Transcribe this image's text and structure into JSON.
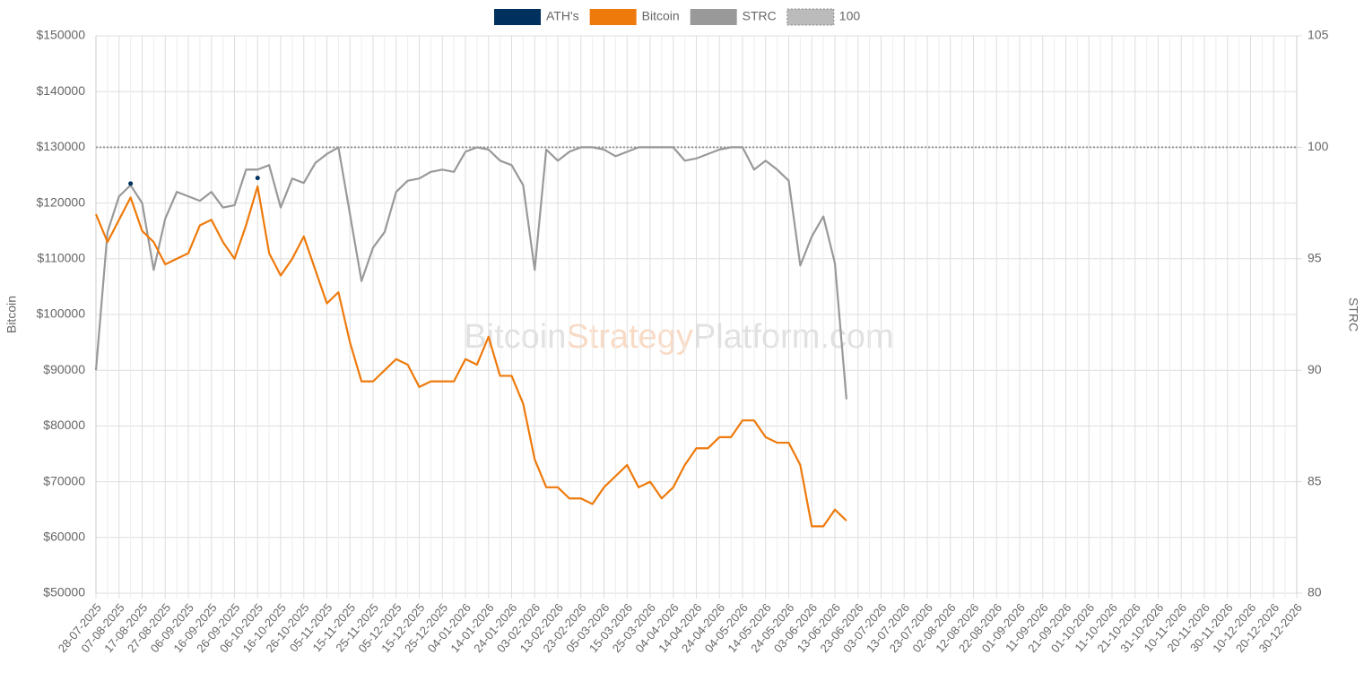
{
  "chart_data": {
    "type": "line",
    "y_label": "Bitcoin",
    "y2_label": "STRC",
    "watermark": [
      "Bitcoin",
      "Strategy",
      "Platform.com"
    ],
    "categories": [
      "28-07-2025",
      null,
      "07-08-2025",
      null,
      "17-08-2025",
      null,
      "27-08-2025",
      null,
      "06-09-2025",
      null,
      "16-09-2025",
      null,
      "26-09-2025",
      null,
      "06-10-2025",
      null,
      "16-10-2025",
      null,
      "26-10-2025",
      null,
      "05-11-2025",
      null,
      "15-11-2025",
      null,
      "25-11-2025",
      null,
      "05-12-2025",
      null,
      "15-12-2025",
      null,
      "25-12-2025",
      null,
      "04-01-2026",
      null,
      "14-01-2026",
      null,
      "24-01-2026",
      null,
      "03-02-2026",
      null,
      "13-02-2026",
      null,
      "23-02-2026",
      null,
      "05-03-2026",
      null,
      "15-03-2026",
      null,
      "25-03-2026",
      null,
      "04-04-2026",
      null,
      "14-04-2026",
      null,
      "24-04-2026",
      null,
      "04-05-2026",
      null,
      "14-05-2026",
      null,
      "24-05-2026",
      null,
      "03-06-2026",
      null,
      "13-06-2026",
      null,
      "23-06-2026",
      null,
      "03-07-2026",
      null,
      "13-07-2026",
      null,
      "23-07-2026",
      null,
      "02-08-2026",
      null,
      "12-08-2026",
      null,
      "22-08-2026",
      null,
      "01-09-2026",
      null,
      "11-09-2026",
      null,
      "21-09-2026",
      null,
      "01-10-2026",
      null,
      "11-10-2026",
      null,
      "21-10-2026",
      null,
      "31-10-2026",
      null,
      "10-11-2026",
      null,
      "20-11-2026",
      null,
      "30-11-2026",
      null,
      "10-12-2026",
      null,
      "20-12-2026",
      null,
      "30-12-2026"
    ],
    "series": [
      {
        "name": "ATH's",
        "color": "#00305e",
        "axis": "y",
        "marker": true,
        "values": [
          null,
          null,
          null,
          123500,
          null,
          null,
          null,
          null,
          null,
          null,
          null,
          null,
          null,
          null,
          124500,
          null,
          null,
          null,
          null,
          null,
          null,
          null,
          null,
          null,
          null,
          null,
          null,
          null,
          null,
          null,
          null,
          null,
          null,
          null,
          null,
          null,
          null,
          null,
          null,
          null,
          null,
          null,
          null,
          null,
          null,
          null,
          null,
          null,
          null,
          null,
          null,
          null,
          null,
          null,
          null,
          null,
          null,
          null,
          null,
          null,
          null,
          null,
          null,
          null,
          null,
          null,
          null,
          null,
          null,
          null,
          null,
          null,
          null,
          null,
          null,
          null,
          null,
          null,
          null,
          null,
          null,
          null,
          null,
          null,
          null,
          null,
          null,
          null,
          null,
          null,
          null,
          null,
          null,
          null,
          null,
          null,
          null,
          null,
          null,
          null,
          null,
          null,
          null,
          null,
          null
        ]
      },
      {
        "name": "Bitcoin",
        "color": "#ee7a0c",
        "axis": "y",
        "values": [
          118000,
          113000,
          117000,
          121000,
          115000,
          113000,
          109000,
          110000,
          111000,
          116000,
          117000,
          113000,
          110000,
          116000,
          123000,
          111000,
          107000,
          110000,
          114000,
          108000,
          102000,
          104000,
          95000,
          88000,
          88000,
          90000,
          92000,
          91000,
          87000,
          88000,
          88000,
          88000,
          92000,
          91000,
          96000,
          89000,
          89000,
          84000,
          74000,
          69000,
          69000,
          67000,
          67000,
          66000,
          69000,
          71000,
          73000,
          69000,
          70000,
          67000,
          69000,
          73000,
          76000,
          76000,
          78000,
          78000,
          81000,
          81000,
          78000,
          77000,
          77000,
          73000,
          62000,
          62000,
          65000,
          63000,
          null,
          null,
          null,
          null,
          null,
          null,
          null,
          null,
          null,
          null,
          null,
          null,
          null,
          null,
          null,
          null,
          null,
          null,
          null,
          null,
          null,
          null,
          null,
          null,
          null,
          null,
          null,
          null,
          null,
          null,
          null,
          null,
          null,
          null,
          null,
          null,
          null,
          null,
          null
        ]
      },
      {
        "name": "STRC",
        "color": "#999999",
        "axis": "y2",
        "values": [
          90,
          96.2,
          97.8,
          98.3,
          97.5,
          94.5,
          96.8,
          98.0,
          97.8,
          97.6,
          98.0,
          97.3,
          97.4,
          99.0,
          99.0,
          99.2,
          97.3,
          98.6,
          98.4,
          99.3,
          99.7,
          100.0,
          97.0,
          94.0,
          95.5,
          96.2,
          98.0,
          98.5,
          98.6,
          98.9,
          99.0,
          98.9,
          99.8,
          100.0,
          99.9,
          99.4,
          99.2,
          98.3,
          94.5,
          99.9,
          99.4,
          99.8,
          100.0,
          100.0,
          99.9,
          99.6,
          99.8,
          100.0,
          100.0,
          100.0,
          100.0,
          99.4,
          99.5,
          99.7,
          99.9,
          100.0,
          100.0,
          99.0,
          99.4,
          99.0,
          98.5,
          94.7,
          96.0,
          96.9,
          94.8,
          88.7,
          null,
          null,
          null,
          null,
          null,
          null,
          null,
          null,
          null,
          null,
          null,
          null,
          null,
          null,
          null,
          null,
          null,
          null,
          null,
          null,
          null,
          null,
          null,
          null,
          null,
          null,
          null,
          null,
          null,
          null,
          null,
          null,
          null,
          null,
          null,
          null,
          null,
          null,
          null
        ]
      },
      {
        "name": "100",
        "color": "#999999",
        "axis": "y2",
        "dotted": true,
        "values": [
          100,
          100,
          100,
          100,
          100,
          100,
          100,
          100,
          100,
          100,
          100,
          100,
          100,
          100,
          100,
          100,
          100,
          100,
          100,
          100,
          100,
          100,
          100,
          100,
          100,
          100,
          100,
          100,
          100,
          100,
          100,
          100,
          100,
          100,
          100,
          100,
          100,
          100,
          100,
          100,
          100,
          100,
          100,
          100,
          100,
          100,
          100,
          100,
          100,
          100,
          100,
          100,
          100,
          100,
          100,
          100,
          100,
          100,
          100,
          100,
          100,
          100,
          100,
          100,
          100,
          100,
          100,
          100,
          100,
          100,
          100,
          100,
          100,
          100,
          100,
          100,
          100,
          100,
          100,
          100,
          100,
          100,
          100,
          100,
          100,
          100,
          100,
          100,
          100,
          100,
          100,
          100,
          100,
          100,
          100,
          100,
          100,
          100,
          100,
          100,
          100,
          100,
          100,
          100,
          100
        ]
      }
    ],
    "ylim": [
      50000,
      150000
    ],
    "yticks": [
      {
        "value": 50000,
        "label": "$50000"
      },
      {
        "value": 60000,
        "label": "$60000"
      },
      {
        "value": 70000,
        "label": "$70000"
      },
      {
        "value": 80000,
        "label": "$80000"
      },
      {
        "value": 90000,
        "label": "$90000"
      },
      {
        "value": 100000,
        "label": "$100000"
      },
      {
        "value": 110000,
        "label": "$110000"
      },
      {
        "value": 120000,
        "label": "$120000"
      },
      {
        "value": 130000,
        "label": "$130000"
      },
      {
        "value": 140000,
        "label": "$140000"
      },
      {
        "value": 150000,
        "label": "$150000"
      }
    ],
    "y2lim": [
      80,
      105
    ],
    "y2ticks": [
      80,
      85,
      90,
      95,
      100,
      105
    ],
    "grid": true,
    "legend": "top"
  }
}
